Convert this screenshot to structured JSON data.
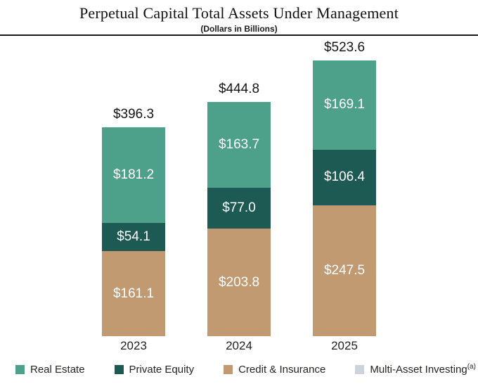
{
  "header": {
    "title": "Perpetual Capital Total Assets Under Management",
    "subtitle": "(Dollars in Billions)"
  },
  "chart_data": {
    "type": "bar",
    "stacked": true,
    "title": "Perpetual Capital Total Assets Under Management",
    "units": "Dollars in Billions",
    "categories": [
      "2023",
      "2024",
      "2025"
    ],
    "series": [
      {
        "name": "Credit & Insurance",
        "color": "#C19A72",
        "values": [
          161.1,
          203.8,
          247.5
        ],
        "labels": [
          "$161.1",
          "$203.8",
          "$247.5"
        ]
      },
      {
        "name": "Private Equity",
        "color": "#1E5A54",
        "values": [
          54.1,
          77.0,
          106.4
        ],
        "labels": [
          "$54.1",
          "$77.0",
          "$106.4"
        ]
      },
      {
        "name": "Real Estate",
        "color": "#4DA18B",
        "values": [
          181.2,
          163.7,
          169.1
        ],
        "labels": [
          "$181.2",
          "$163.7",
          "$169.1"
        ]
      }
    ],
    "series_order_note": "listed bottom-to-top of stack",
    "totals": [
      396.3,
      444.8,
      523.6
    ],
    "total_labels": [
      "$396.3",
      "$444.8",
      "$523.6"
    ],
    "xlabel": "",
    "ylabel": "",
    "legend_position": "bottom"
  },
  "legend": {
    "items": [
      {
        "label": "Real Estate",
        "note": "",
        "color": "#4DA18B"
      },
      {
        "label": "Private Equity",
        "note": "",
        "color": "#1E5A54"
      },
      {
        "label": "Credit & Insurance",
        "note": "",
        "color": "#C19A72"
      },
      {
        "label": "Multi-Asset Investing",
        "note": "(a)",
        "color": "#CDD3DC"
      }
    ]
  },
  "colors": {
    "real_estate": "#4DA18B",
    "private_equity": "#1E5A54",
    "credit_insurance": "#C19A72",
    "multi_asset": "#CDD3DC",
    "divider": "#1A1A1A",
    "text_dark": "#151515",
    "segment_text": "#FFFFFF"
  }
}
